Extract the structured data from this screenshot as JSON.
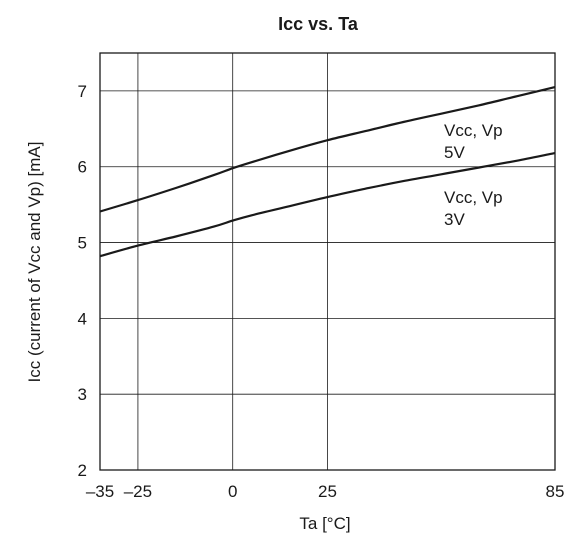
{
  "chart_data": {
    "type": "line",
    "title": "Icc vs. Ta",
    "xlabel": "Ta [°C]",
    "ylabel": "Icc (current of Vcc and Vp) [mA]",
    "xlim": [
      -35,
      85
    ],
    "ylim": [
      2,
      7.5
    ],
    "xticks": [
      -35,
      -25,
      0,
      25,
      85
    ],
    "xtick_labels": [
      "–35",
      "–25",
      "0",
      "25",
      "85"
    ],
    "yticks": [
      2,
      3,
      4,
      5,
      6,
      7
    ],
    "ytick_labels": [
      "2",
      "3",
      "4",
      "5",
      "6",
      "7"
    ],
    "grid": true,
    "line_color": "#1a1a1a",
    "series": [
      {
        "name": "Vcc, Vp 5V",
        "label_lines": [
          "Vcc, Vp",
          "5V"
        ],
        "x": [
          -35,
          -25,
          -15,
          -5,
          0,
          5,
          15,
          25,
          35,
          45,
          55,
          65,
          75,
          85
        ],
        "y": [
          5.41,
          5.56,
          5.72,
          5.89,
          5.98,
          6.06,
          6.21,
          6.35,
          6.47,
          6.59,
          6.7,
          6.81,
          6.93,
          7.05
        ]
      },
      {
        "name": "Vcc, Vp 3V",
        "label_lines": [
          "Vcc, Vp",
          "3V"
        ],
        "x": [
          -35,
          -25,
          -15,
          -5,
          0,
          5,
          15,
          25,
          35,
          45,
          55,
          65,
          75,
          85
        ],
        "y": [
          4.82,
          4.96,
          5.08,
          5.21,
          5.29,
          5.36,
          5.48,
          5.6,
          5.71,
          5.81,
          5.9,
          5.99,
          6.08,
          6.18
        ]
      }
    ]
  }
}
